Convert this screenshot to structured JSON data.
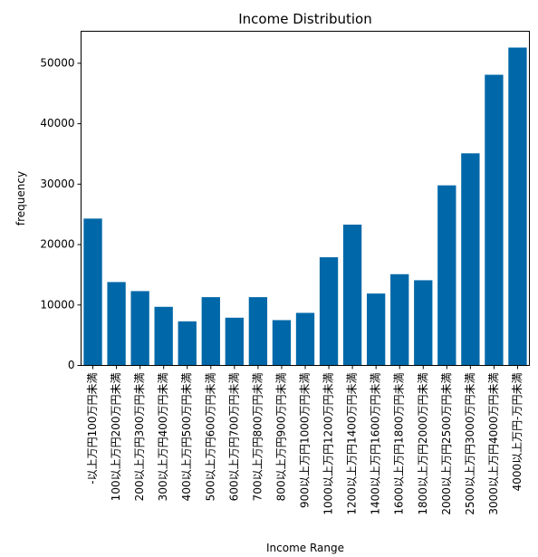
{
  "chart_data": {
    "type": "bar",
    "title": "Income Distribution",
    "xlabel": "Income Range",
    "ylabel": "frequency",
    "categories": [
      "-以上万円100万円未満",
      "100以上万円200万円未満",
      "200以上万円300万円未満",
      "300以上万円400万円未満",
      "400以上万円500万円未満",
      "500以上万円600万円未満",
      "600以上万円700万円未満",
      "700以上万円800万円未満",
      "800以上万円900万円未満",
      "900以上万円1000万円未満",
      "1000以上万円1200万円未満",
      "1200以上万円1400万円未満",
      "1400以上万円1600万円未満",
      "1600以上万円1800万円未満",
      "1800以上万円2000万円未満",
      "2000以上万円2500万円未満",
      "2500以上万円3000万円未満",
      "3000以上万円4000万円未満",
      "4000以上万円-万円未満"
    ],
    "values": [
      24300,
      13800,
      12300,
      9700,
      7300,
      11300,
      7900,
      11300,
      7500,
      8700,
      17900,
      23300,
      11900,
      15100,
      14100,
      29800,
      35100,
      48100,
      52600
    ],
    "ylim": [
      0,
      55300
    ],
    "yticks": [
      0,
      10000,
      20000,
      30000,
      40000,
      50000
    ],
    "grid": false,
    "colors": {
      "bar": "#0068a8"
    }
  }
}
